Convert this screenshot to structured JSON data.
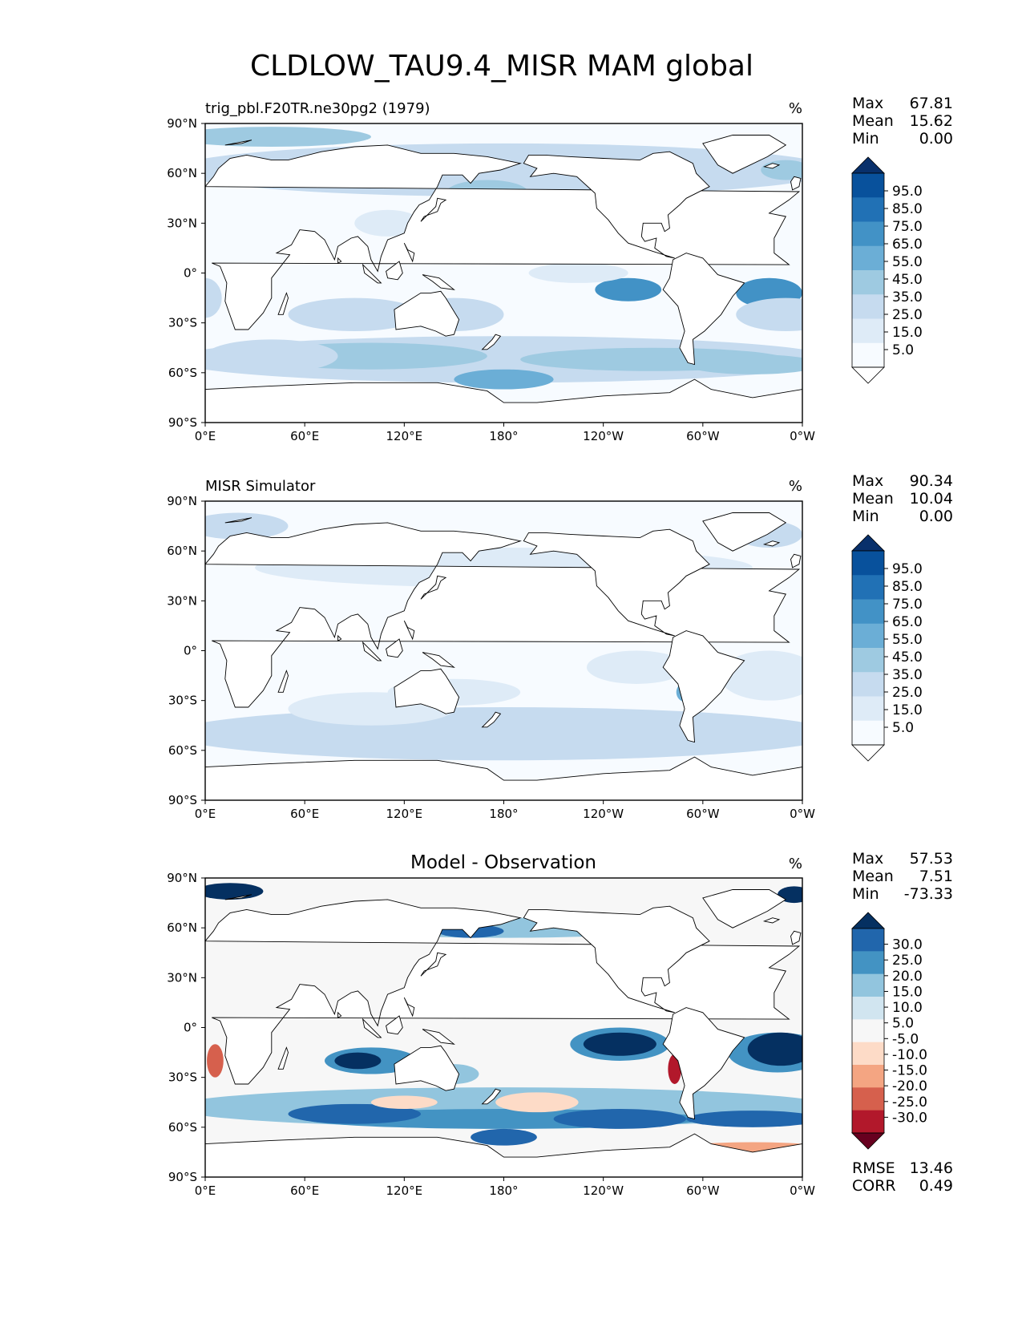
{
  "title": "CLDLOW_TAU9.4_MISR MAM global",
  "colors": {
    "seq": [
      "#ffffff",
      "#f7fbff",
      "#deebf7",
      "#c6dbef",
      "#9ecae1",
      "#6baed6",
      "#4292c6",
      "#2171b5",
      "#08519c",
      "#08306b"
    ],
    "diff": [
      "#67001f",
      "#b2182b",
      "#d6604d",
      "#f4a582",
      "#fddbc7",
      "#f7f7f7",
      "#d1e5f0",
      "#92c5de",
      "#4393c3",
      "#2166ac",
      "#053061"
    ],
    "land_line": "#000000"
  },
  "chart_data": [
    {
      "type": "heatmap",
      "panel": "test",
      "left_title": "trig_pbl.F20TR.ne30pg2 (1979)",
      "center_title": "",
      "units": "%",
      "xlabels": [
        "0°E",
        "60°E",
        "120°E",
        "180°",
        "120°W",
        "60°W",
        "0°W"
      ],
      "ylabels": [
        "90°N",
        "60°N",
        "30°N",
        "0°",
        "30°S",
        "60°S",
        "90°S"
      ],
      "xlim": [
        0,
        360
      ],
      "ylim": [
        -90,
        90
      ],
      "stats": [
        {
          "label": "Max",
          "value": "67.81"
        },
        {
          "label": "Mean",
          "value": "15.62"
        },
        {
          "label": "Min",
          "value": "0.00"
        }
      ],
      "colorbar": {
        "levels": [
          "95.0",
          "85.0",
          "75.0",
          "65.0",
          "55.0",
          "45.0",
          "35.0",
          "25.0",
          "15.0",
          "5.0"
        ],
        "extend": "both"
      }
    },
    {
      "type": "heatmap",
      "panel": "reference",
      "left_title": "MISR Simulator",
      "center_title": "",
      "units": "%",
      "xlabels": [
        "0°E",
        "60°E",
        "120°E",
        "180°",
        "120°W",
        "60°W",
        "0°W"
      ],
      "ylabels": [
        "90°N",
        "60°N",
        "30°N",
        "0°",
        "30°S",
        "60°S",
        "90°S"
      ],
      "xlim": [
        0,
        360
      ],
      "ylim": [
        -90,
        90
      ],
      "stats": [
        {
          "label": "Max",
          "value": "90.34"
        },
        {
          "label": "Mean",
          "value": "10.04"
        },
        {
          "label": "Min",
          "value": "0.00"
        }
      ],
      "colorbar": {
        "levels": [
          "95.0",
          "85.0",
          "75.0",
          "65.0",
          "55.0",
          "45.0",
          "35.0",
          "25.0",
          "15.0",
          "5.0"
        ],
        "extend": "both"
      }
    },
    {
      "type": "heatmap",
      "panel": "difference",
      "left_title": "",
      "center_title": "Model - Observation",
      "units": "%",
      "xlabels": [
        "0°E",
        "60°E",
        "120°E",
        "180°",
        "120°W",
        "60°W",
        "0°W"
      ],
      "ylabels": [
        "90°N",
        "60°N",
        "30°N",
        "0°",
        "30°S",
        "60°S",
        "90°S"
      ],
      "xlim": [
        0,
        360
      ],
      "ylim": [
        -90,
        90
      ],
      "stats": [
        {
          "label": "Max",
          "value": "57.53"
        },
        {
          "label": "Mean",
          "value": "7.51"
        },
        {
          "label": "Min",
          "value": "-73.33"
        }
      ],
      "colorbar": {
        "levels": [
          "30.0",
          "25.0",
          "20.0",
          "15.0",
          "10.0",
          "5.0",
          "-5.0",
          "-10.0",
          "-15.0",
          "-20.0",
          "-25.0",
          "-30.0"
        ],
        "extend": "both"
      },
      "metrics": [
        {
          "label": "RMSE",
          "value": "13.46"
        },
        {
          "label": "CORR",
          "value": "0.49"
        }
      ]
    }
  ]
}
